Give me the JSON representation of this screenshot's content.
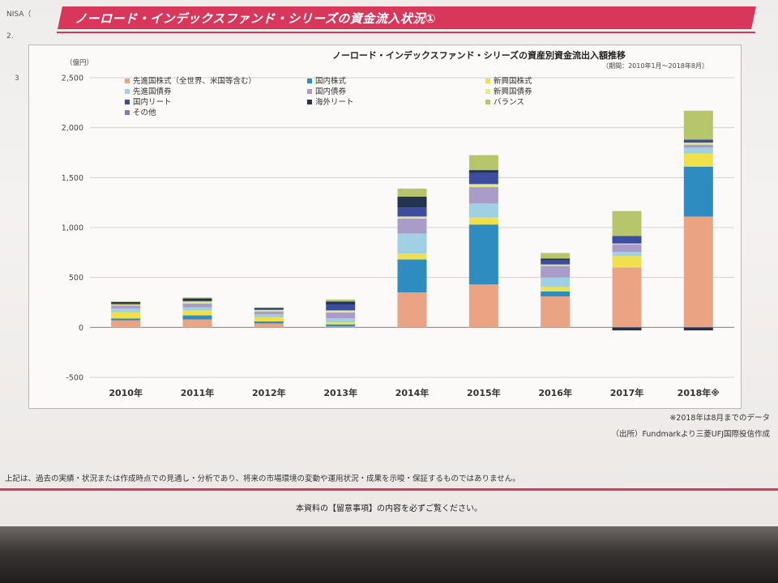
{
  "margin_fragments": [
    "NISA（",
    "2.",
    "3"
  ],
  "banner": {
    "title": "ノーロード・インデックスファンド・シリーズの資金流入状況①"
  },
  "chart_data": {
    "type": "bar",
    "stacked": true,
    "title": "ノーロード・インデックスファンド・シリーズの資産別資金流出入額推移",
    "subtitle": "（期間：2010年1月～2018年8月）",
    "unit_label": "（億円）",
    "xlabel": "",
    "ylabel": "",
    "categories": [
      "2010年",
      "2011年",
      "2012年",
      "2013年",
      "2014年",
      "2015年",
      "2016年",
      "2017年",
      "2018年※"
    ],
    "ylim": [
      -500,
      2500
    ],
    "yticks": [
      2500,
      2000,
      1500,
      1000,
      500,
      0,
      -500
    ],
    "ytick_labels": [
      "2,500",
      "2,000",
      "1,500",
      "1,000",
      "500",
      "0",
      "-500"
    ],
    "grid": true,
    "legend_position": "top-left",
    "series": [
      {
        "name": "先進国株式（全世界、米国等含む）",
        "color": "#eba483",
        "values": [
          70,
          80,
          40,
          10,
          350,
          430,
          310,
          600,
          1110
        ]
      },
      {
        "name": "国内株式",
        "color": "#2e8cc0",
        "values": [
          20,
          40,
          20,
          20,
          330,
          600,
          50,
          0,
          500
        ]
      },
      {
        "name": "新興国株式",
        "color": "#f0e04c",
        "values": [
          60,
          50,
          40,
          20,
          60,
          70,
          45,
          115,
          130
        ]
      },
      {
        "name": "先進国債券",
        "color": "#9fd0e3",
        "values": [
          40,
          30,
          30,
          40,
          200,
          140,
          95,
          40,
          60
        ]
      },
      {
        "name": "国内債券",
        "color": "#a99cc9",
        "values": [
          30,
          40,
          30,
          60,
          150,
          165,
          115,
          75,
          30
        ]
      },
      {
        "name": "新興国債券",
        "color": "#e3e98f",
        "values": [
          10,
          20,
          15,
          20,
          20,
          30,
          15,
          10,
          20
        ]
      },
      {
        "name": "国内リート",
        "color": "#3c4d9f",
        "values": [
          10,
          10,
          5,
          60,
          90,
          110,
          40,
          75,
          30
        ]
      },
      {
        "name": "海外リート",
        "color": "#233453",
        "values": [
          15,
          20,
          15,
          30,
          110,
          30,
          20,
          -30,
          -30
        ]
      },
      {
        "name": "バランス",
        "color": "#b7c66a",
        "values": [
          5,
          10,
          5,
          20,
          80,
          150,
          55,
          250,
          290
        ]
      },
      {
        "name": "その他",
        "color": "#8d7ba6",
        "values": [
          0,
          0,
          0,
          0,
          0,
          0,
          0,
          0,
          0
        ]
      }
    ]
  },
  "notes": {
    "data_note": "※2018年は8月までのデータ",
    "source": "（出所）Fundmarkより三菱UFJ国際投信作成"
  },
  "footer": {
    "disclaimer": "上記は、過去の実績・状況または作成時点での見通し・分析であり、将来の市場環境の変動や運用状況・成果を示唆・保証するものではありません。",
    "notice": "本資料の【留意事項】の内容を必ずご覧ください。"
  },
  "colors": {
    "banner": "#d8375b",
    "rule": "#d8375b",
    "gridline": "#c9c6c3",
    "zero_line": "#8f8b88"
  }
}
